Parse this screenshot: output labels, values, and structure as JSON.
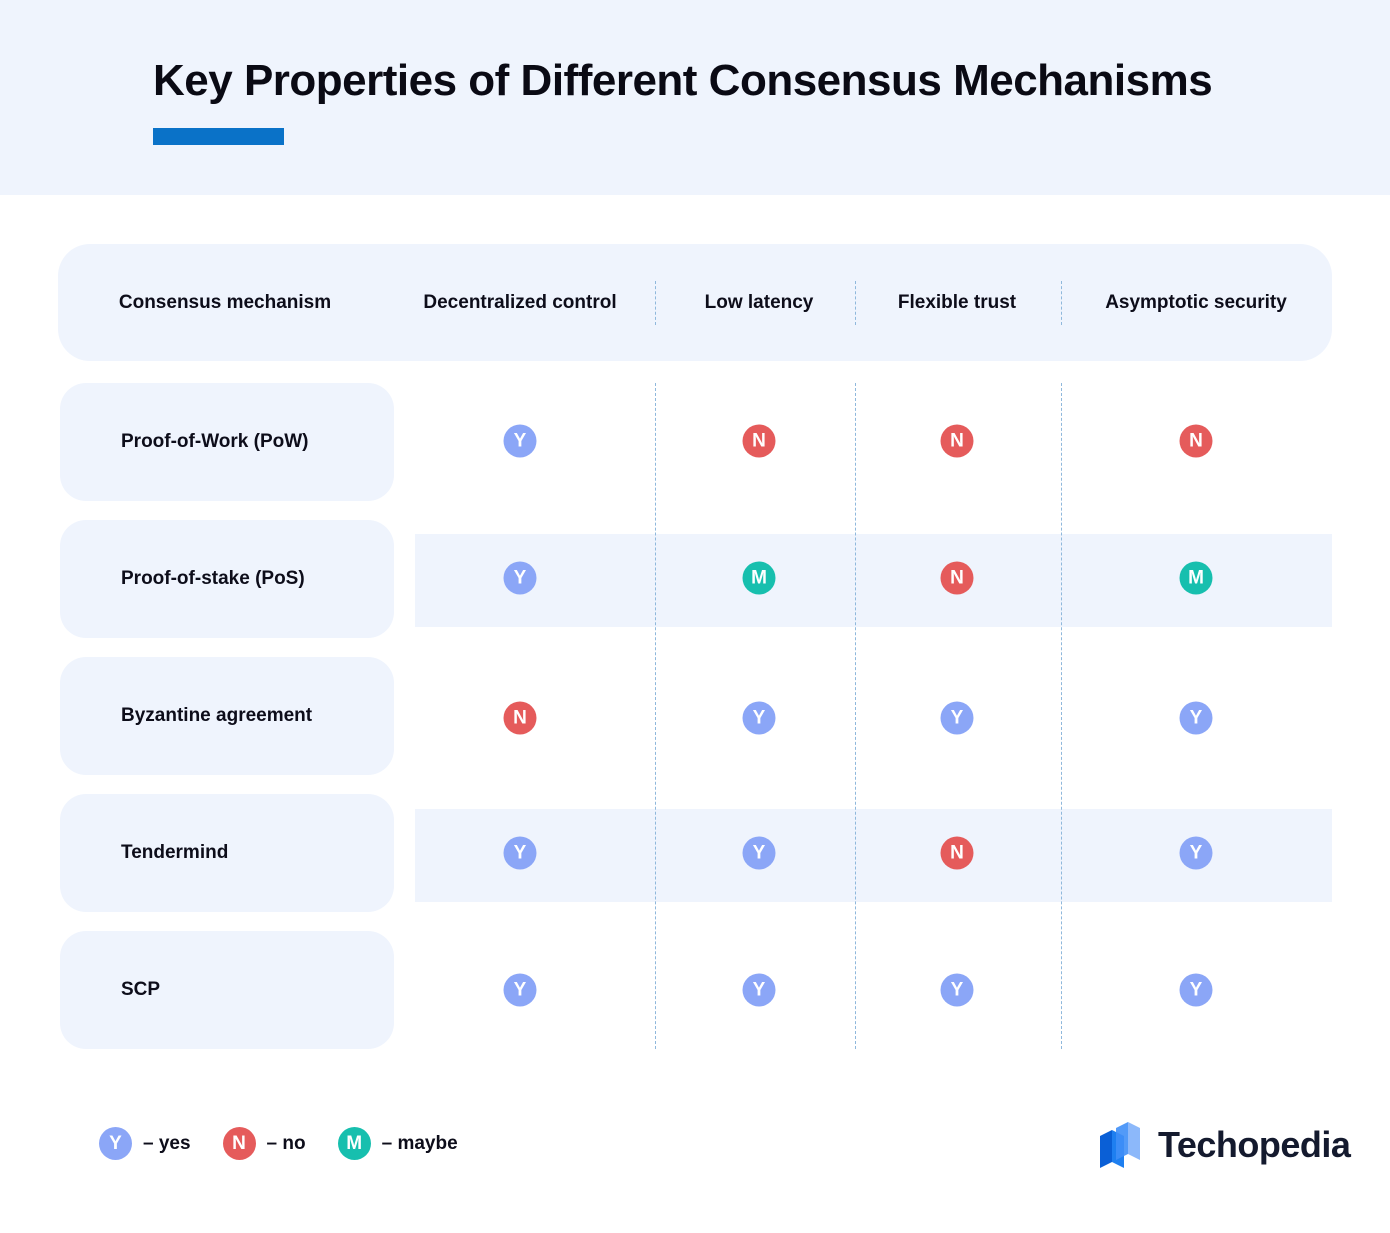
{
  "title": "Key Properties of Different Consensus Mechanisms",
  "columns": [
    "Consensus mechanism",
    "Decentralized control",
    "Low latency",
    "Flexible trust",
    "Asymptotic security"
  ],
  "rows": [
    {
      "name": "Proof-of-Work (PoW)",
      "values": [
        "Y",
        "N",
        "N",
        "N"
      ]
    },
    {
      "name": "Proof-of-stake (PoS)",
      "values": [
        "Y",
        "M",
        "N",
        "M"
      ]
    },
    {
      "name": "Byzantine agreement",
      "values": [
        "N",
        "Y",
        "Y",
        "Y"
      ]
    },
    {
      "name": "Tendermind",
      "values": [
        "Y",
        "Y",
        "N",
        "Y"
      ]
    },
    {
      "name": "SCP",
      "values": [
        "Y",
        "Y",
        "Y",
        "Y"
      ]
    }
  ],
  "legend": [
    {
      "code": "Y",
      "label": "– yes"
    },
    {
      "code": "N",
      "label": "– no"
    },
    {
      "code": "M",
      "label": "– maybe"
    }
  ],
  "colors": {
    "Y": "#8ba6f7",
    "N": "#e55b5b",
    "M": "#17bfae",
    "accent": "#0a72c8",
    "band": "#eff4fd"
  },
  "brand": {
    "name": "Techopedia",
    "icon": "techopedia-logo-icon"
  }
}
